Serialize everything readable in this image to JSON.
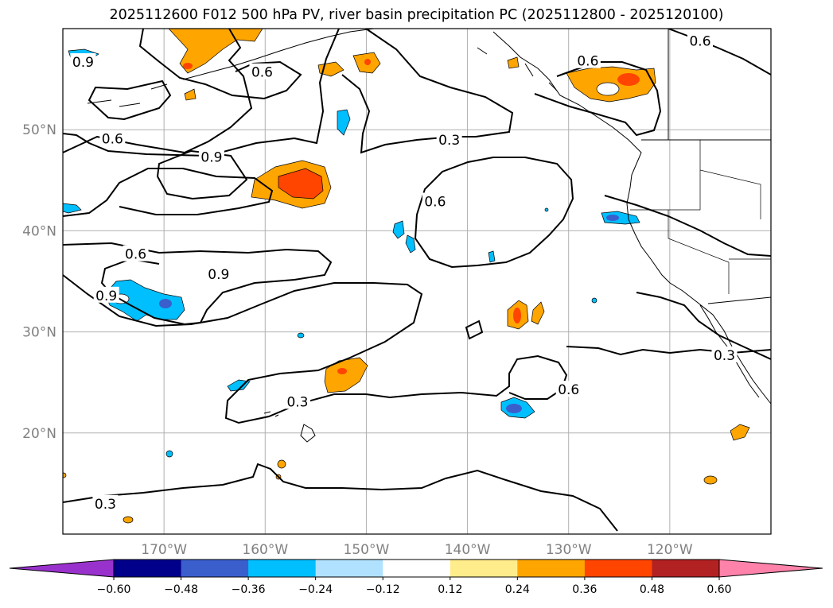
{
  "title": "2025112600 F012 500 hPa PV, river basin precipitation PC (2025112800 - 2025120100)",
  "map": {
    "lon_range": [
      -180,
      -110
    ],
    "lat_range": [
      10,
      60
    ],
    "lat_ticks": [
      {
        "lat": 50,
        "label": "50°N"
      },
      {
        "lat": 40,
        "label": "40°N"
      },
      {
        "lat": 30,
        "label": "30°N"
      },
      {
        "lat": 20,
        "label": "20°N"
      }
    ],
    "lon_ticks": [
      {
        "lon": -170,
        "label": "170°W"
      },
      {
        "lon": -160,
        "label": "160°W"
      },
      {
        "lon": -150,
        "label": "150°W"
      },
      {
        "lon": -140,
        "label": "140°W"
      },
      {
        "lon": -130,
        "label": "130°W"
      },
      {
        "lon": -120,
        "label": "120°W"
      }
    ],
    "grid_color": "#b0b0b0",
    "frame_color": "#000000"
  },
  "pv_contour_labels": [
    {
      "text": "0.9",
      "lon": -178,
      "lat": 56.7
    },
    {
      "text": "0.6",
      "lon": -160.3,
      "lat": 55.7
    },
    {
      "text": "0.6",
      "lon": -175.1,
      "lat": 49.1
    },
    {
      "text": "0.9",
      "lon": -165.3,
      "lat": 47.3
    },
    {
      "text": "0.3",
      "lon": -141.8,
      "lat": 49.0
    },
    {
      "text": "0.6",
      "lon": -143.2,
      "lat": 42.9
    },
    {
      "text": "0.6",
      "lon": -172.8,
      "lat": 37.7
    },
    {
      "text": "0.9",
      "lon": -164.6,
      "lat": 35.7
    },
    {
      "text": "0.9",
      "lon": -175.7,
      "lat": 33.6
    },
    {
      "text": "0.3",
      "lon": -156.8,
      "lat": 23.1
    },
    {
      "text": "0.6",
      "lon": -130.0,
      "lat": 24.3
    },
    {
      "text": "0.3",
      "lon": -175.8,
      "lat": 13.0
    },
    {
      "text": "0.6",
      "lon": -128.1,
      "lat": 56.8
    },
    {
      "text": "0.6",
      "lon": -117.0,
      "lat": 58.8
    },
    {
      "text": "0.3",
      "lon": -114.6,
      "lat": 27.7
    }
  ],
  "colorbar": {
    "levels": [
      "−0.60",
      "−0.48",
      "−0.36",
      "−0.24",
      "−0.12",
      "0.12",
      "0.24",
      "0.36",
      "0.48",
      "0.60"
    ],
    "colors": [
      "#9932cc",
      "#00008b",
      "#3a5fcd",
      "#00bfff",
      "#b0e2ff",
      "#ffffff",
      "#ffec8b",
      "#ffa500",
      "#ff4500",
      "#b22222",
      "#ff82ab"
    ]
  }
}
